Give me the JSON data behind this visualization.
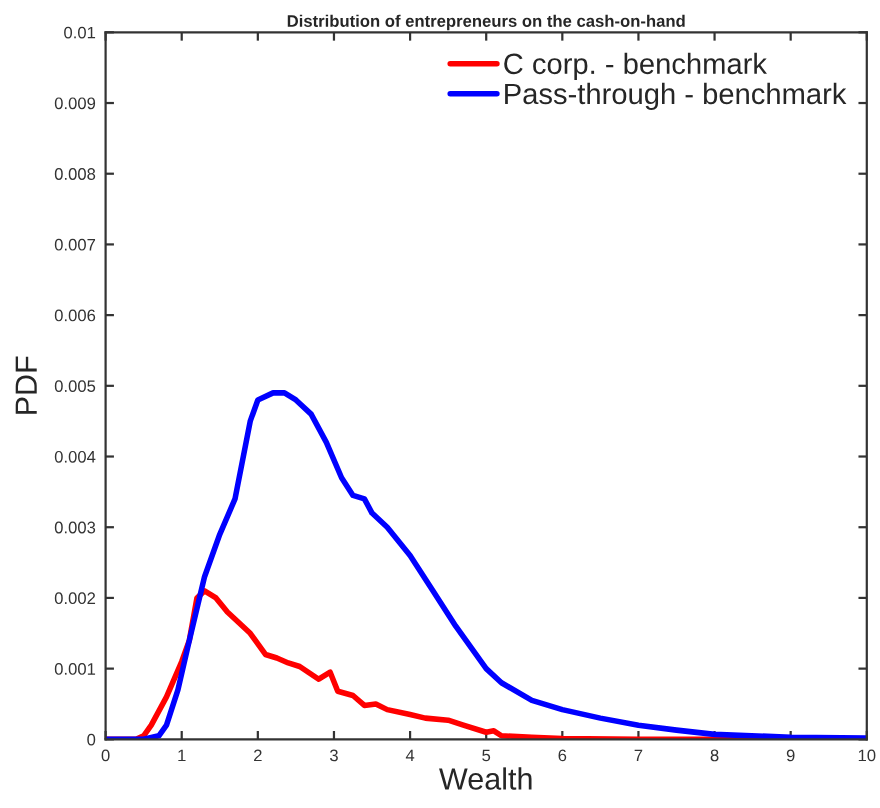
{
  "chart_data": {
    "type": "line",
    "title": "Distribution of entrepreneurs on the cash-on-hand",
    "xlabel": "Wealth",
    "ylabel": "PDF",
    "series": [
      {
        "name": "C corp. - benchmark",
        "color": "#ff0000",
        "x": [
          0,
          0.4,
          0.5,
          0.6,
          0.8,
          1.0,
          1.1,
          1.2,
          1.3,
          1.45,
          1.6,
          1.9,
          2.1,
          2.25,
          2.4,
          2.55,
          2.8,
          2.95,
          3.05,
          3.25,
          3.4,
          3.55,
          3.7,
          4.0,
          4.2,
          4.5,
          4.7,
          5.0,
          5.1,
          5.2,
          5.6,
          6,
          7,
          8,
          9,
          10
        ],
        "values": [
          0,
          0,
          5e-05,
          0.0002,
          0.0006,
          0.0011,
          0.0014,
          0.002,
          0.0021,
          0.002,
          0.0018,
          0.0015,
          0.0012,
          0.00115,
          0.00108,
          0.00103,
          0.00085,
          0.00095,
          0.00068,
          0.00062,
          0.00048,
          0.0005,
          0.00042,
          0.00035,
          0.0003,
          0.00027,
          0.0002,
          0.0001,
          0.00012,
          5e-05,
          3e-05,
          1e-05,
          0,
          0,
          0,
          0
        ]
      },
      {
        "name": "Pass-through - benchmark",
        "color": "#0000ff",
        "x": [
          0,
          0.5,
          0.7,
          0.8,
          0.95,
          1.1,
          1.3,
          1.5,
          1.7,
          1.9,
          2.0,
          2.2,
          2.35,
          2.5,
          2.7,
          2.9,
          3.1,
          3.25,
          3.4,
          3.5,
          3.7,
          4.0,
          4.3,
          4.6,
          5.0,
          5.2,
          5.6,
          6.0,
          6.5,
          7,
          7.5,
          8,
          9,
          10
        ],
        "values": [
          0,
          0,
          5e-05,
          0.0002,
          0.0007,
          0.0014,
          0.0023,
          0.0029,
          0.0034,
          0.0045,
          0.0048,
          0.0049,
          0.0049,
          0.0048,
          0.0046,
          0.0042,
          0.0037,
          0.00345,
          0.0034,
          0.0032,
          0.003,
          0.0026,
          0.0021,
          0.0016,
          0.001,
          0.0008,
          0.00055,
          0.00042,
          0.0003,
          0.0002,
          0.00013,
          7e-05,
          3e-05,
          2e-05
        ]
      }
    ],
    "xlim": [
      0,
      10
    ],
    "ylim": [
      0,
      0.01
    ],
    "xticks": [
      0,
      1,
      2,
      3,
      4,
      5,
      6,
      7,
      8,
      9,
      10
    ],
    "yticks": [
      0,
      0.001,
      0.002,
      0.003,
      0.004,
      0.005,
      0.006,
      0.007,
      0.008,
      0.009,
      0.01
    ],
    "grid": false,
    "legend": "top right",
    "marker": "none",
    "line_style": "solid"
  }
}
